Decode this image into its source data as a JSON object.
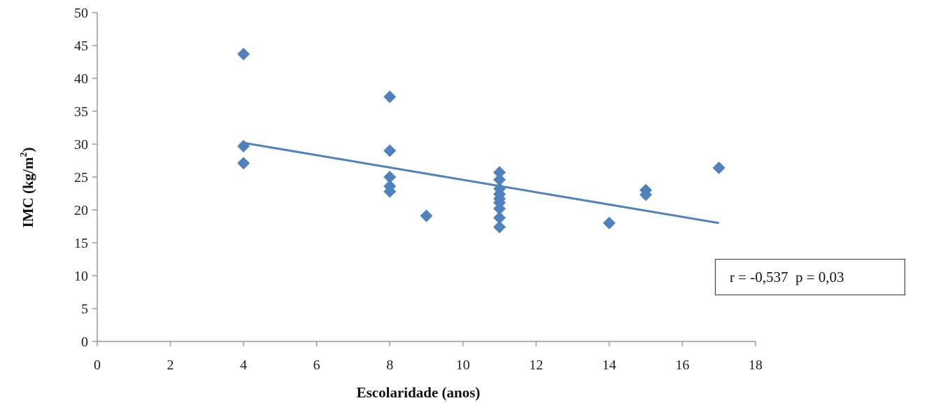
{
  "chart_data": {
    "type": "scatter",
    "xlabel": "Escolaridade (anos)",
    "ylabel_main": "IMC (kg/m",
    "ylabel_sup": "2",
    "ylabel_close": ")",
    "xlim": [
      0,
      18
    ],
    "ylim": [
      0,
      50
    ],
    "x_ticks": [
      0,
      2,
      4,
      6,
      8,
      10,
      12,
      14,
      16,
      18
    ],
    "y_ticks": [
      0,
      5,
      10,
      15,
      20,
      25,
      30,
      35,
      40,
      45,
      50
    ],
    "grid": false,
    "points": [
      {
        "x": 4,
        "y": 43.7
      },
      {
        "x": 4,
        "y": 29.7
      },
      {
        "x": 4,
        "y": 27.1
      },
      {
        "x": 8,
        "y": 37.2
      },
      {
        "x": 8,
        "y": 29.0
      },
      {
        "x": 8,
        "y": 25.0
      },
      {
        "x": 8,
        "y": 23.6
      },
      {
        "x": 8,
        "y": 22.8
      },
      {
        "x": 9,
        "y": 19.1
      },
      {
        "x": 11,
        "y": 25.7
      },
      {
        "x": 11,
        "y": 24.6
      },
      {
        "x": 11,
        "y": 23.2
      },
      {
        "x": 11,
        "y": 22.4
      },
      {
        "x": 11,
        "y": 21.7
      },
      {
        "x": 11,
        "y": 21.1
      },
      {
        "x": 11,
        "y": 20.2
      },
      {
        "x": 11,
        "y": 18.8
      },
      {
        "x": 11,
        "y": 17.4
      },
      {
        "x": 14,
        "y": 18.0
      },
      {
        "x": 15,
        "y": 23.0
      },
      {
        "x": 15,
        "y": 22.3
      },
      {
        "x": 17,
        "y": 26.4
      }
    ],
    "trendline": {
      "x": [
        4,
        17
      ],
      "y": [
        30.2,
        18.0
      ]
    },
    "annotation": "r = -0,537  p = 0,03",
    "marker_color": "#4f81bd",
    "line_color": "#4f81bd"
  }
}
